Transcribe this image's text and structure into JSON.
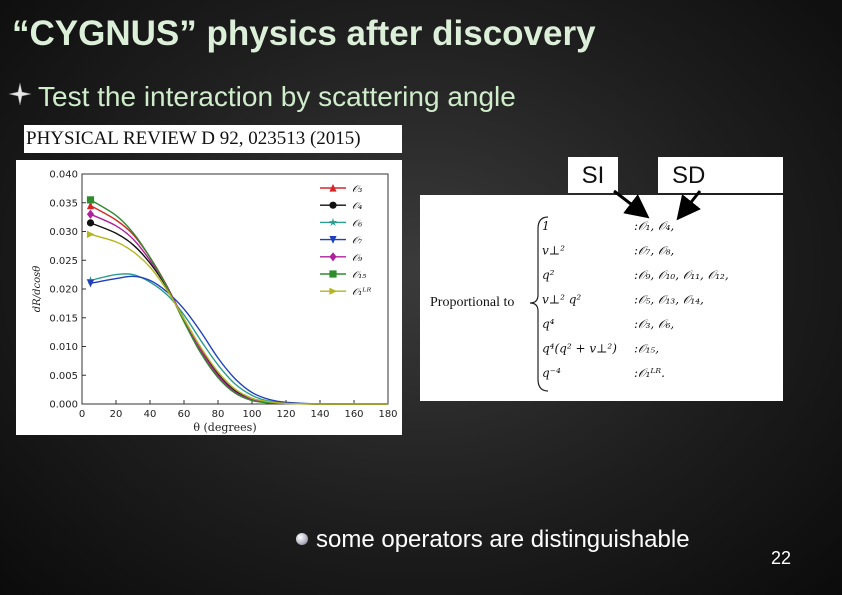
{
  "slide": {
    "title": "“CYGNUS” physics after discovery",
    "bullet": "Test the interaction by scattering angle",
    "citation": "PHYSICAL REVIEW D 92, 023513 (2015)",
    "label_si": "SI",
    "label_sd": "SD",
    "bottom_bullet": "some operators are distinguishable",
    "page_number": "22"
  },
  "operators": {
    "prefix": "Proportional to",
    "rows": [
      {
        "factor": "1",
        "ops": ":𝒪₁, 𝒪₄,"
      },
      {
        "factor": "v⊥²",
        "ops": ":𝒪₇, 𝒪₈,"
      },
      {
        "factor": "q²",
        "ops": ":𝒪₉, 𝒪₁₀, 𝒪₁₁, 𝒪₁₂,"
      },
      {
        "factor": "v⊥² q²",
        "ops": ":𝒪₅, 𝒪₁₃, 𝒪₁₄,"
      },
      {
        "factor": "q⁴",
        "ops": ":𝒪₃, 𝒪₆,"
      },
      {
        "factor": "q⁴(q² + v⊥²)",
        "ops": ":𝒪₁₅,"
      },
      {
        "factor": "q⁻⁴",
        "ops": ":𝒪₁ᴸᴿ."
      }
    ]
  },
  "chart_data": {
    "type": "line",
    "xlabel": "θ (degrees)",
    "ylabel": "dR/dcosθ",
    "xlim": [
      0,
      180
    ],
    "ylim": [
      0,
      0.04
    ],
    "xticks": [
      0,
      20,
      40,
      60,
      80,
      100,
      120,
      140,
      160,
      180
    ],
    "yticks": [
      "0.000",
      "0.005",
      "0.010",
      "0.015",
      "0.020",
      "0.025",
      "0.030",
      "0.035",
      "0.040"
    ],
    "legend_position": "top-right",
    "series": [
      {
        "name": "𝒪₃",
        "color": "#d62728",
        "marker": "triangle",
        "x": [
          5,
          20,
          30,
          40,
          50,
          60,
          70,
          80,
          90,
          100,
          110,
          120,
          140,
          160,
          180
        ],
        "y": [
          0.0345,
          0.032,
          0.0295,
          0.0255,
          0.0205,
          0.0145,
          0.009,
          0.0048,
          0.002,
          0.0007,
          0.0002,
          0.0001,
          0.0,
          0.0,
          0.0
        ]
      },
      {
        "name": "𝒪₄",
        "color": "#111111",
        "marker": "circle",
        "x": [
          5,
          20,
          30,
          40,
          50,
          60,
          70,
          80,
          90,
          100,
          110,
          120,
          140,
          160,
          180
        ],
        "y": [
          0.0315,
          0.0297,
          0.0277,
          0.0245,
          0.0202,
          0.0148,
          0.0095,
          0.0052,
          0.0023,
          0.0009,
          0.0003,
          0.0001,
          0.0,
          0.0,
          0.0
        ]
      },
      {
        "name": "𝒪₆",
        "color": "#2a9d8f",
        "marker": "star",
        "x": [
          5,
          20,
          30,
          40,
          50,
          60,
          70,
          80,
          90,
          100,
          110,
          120,
          140,
          160,
          180
        ],
        "y": [
          0.0215,
          0.0225,
          0.0225,
          0.0212,
          0.019,
          0.0155,
          0.011,
          0.0068,
          0.0035,
          0.0015,
          0.0005,
          0.0002,
          0.0,
          0.0,
          0.0
        ]
      },
      {
        "name": "𝒪₇",
        "color": "#1f3fbf",
        "marker": "triangle-down",
        "x": [
          5,
          20,
          30,
          40,
          50,
          60,
          70,
          80,
          90,
          100,
          110,
          120,
          140,
          160,
          180
        ],
        "y": [
          0.021,
          0.0218,
          0.0222,
          0.0215,
          0.0195,
          0.0165,
          0.0125,
          0.008,
          0.0044,
          0.002,
          0.0008,
          0.0003,
          0.0,
          0.0,
          0.0
        ]
      },
      {
        "name": "𝒪₉",
        "color": "#b0209e",
        "marker": "diamond",
        "x": [
          5,
          20,
          30,
          40,
          50,
          60,
          70,
          80,
          90,
          100,
          110,
          120,
          140,
          160,
          180
        ],
        "y": [
          0.033,
          0.031,
          0.0287,
          0.025,
          0.0204,
          0.0147,
          0.0093,
          0.005,
          0.0021,
          0.0008,
          0.0002,
          0.0001,
          0.0,
          0.0,
          0.0
        ]
      },
      {
        "name": "𝒪₁₅",
        "color": "#2e8b2e",
        "marker": "square",
        "x": [
          5,
          20,
          30,
          40,
          50,
          60,
          70,
          80,
          90,
          100,
          110,
          120,
          140,
          160,
          180
        ],
        "y": [
          0.0355,
          0.0328,
          0.0298,
          0.0255,
          0.0203,
          0.0143,
          0.0088,
          0.0046,
          0.0019,
          0.0006,
          0.0002,
          0.0001,
          0.0,
          0.0,
          0.0
        ]
      },
      {
        "name": "𝒪₁ᴸᴿ",
        "color": "#b5b520",
        "marker": "triangle-right",
        "x": [
          5,
          20,
          30,
          40,
          50,
          60,
          70,
          80,
          90,
          100,
          110,
          120,
          140,
          160,
          180
        ],
        "y": [
          0.0295,
          0.0282,
          0.0265,
          0.0238,
          0.0198,
          0.0148,
          0.0098,
          0.0056,
          0.0026,
          0.001,
          0.0004,
          0.0001,
          0.0,
          0.0,
          0.0
        ]
      }
    ]
  }
}
